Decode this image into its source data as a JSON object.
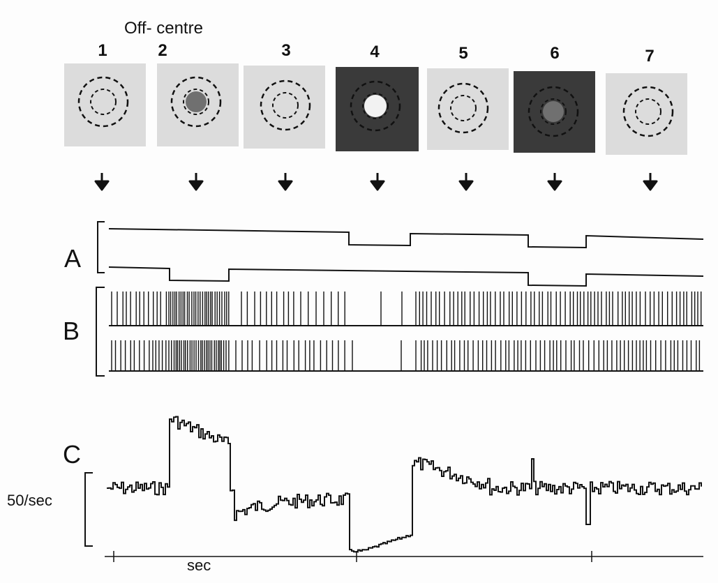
{
  "figure": {
    "heading": "Off- centre",
    "stimuli": [
      {
        "number": "1",
        "background": "light",
        "centre_spot": "none"
      },
      {
        "number": "2",
        "background": "light",
        "centre_spot": "dark"
      },
      {
        "number": "3",
        "background": "light",
        "centre_spot": "none"
      },
      {
        "number": "4",
        "background": "dark",
        "centre_spot": "light"
      },
      {
        "number": "5",
        "background": "light",
        "centre_spot": "none"
      },
      {
        "number": "6",
        "background": "dark",
        "centre_spot": "dark"
      },
      {
        "number": "7",
        "background": "light",
        "centre_spot": "none"
      }
    ],
    "panel_labels": {
      "a": "A",
      "b": "B",
      "c": "C"
    },
    "rate_scale_label": "50/sec",
    "time_scale_label": "sec"
  },
  "colors": {
    "ink": "#111111",
    "light_field": "#dcdcdc",
    "dark_field": "#3a3a3a",
    "dark_spot": "#707070",
    "light_spot": "#f2f2f2"
  }
}
